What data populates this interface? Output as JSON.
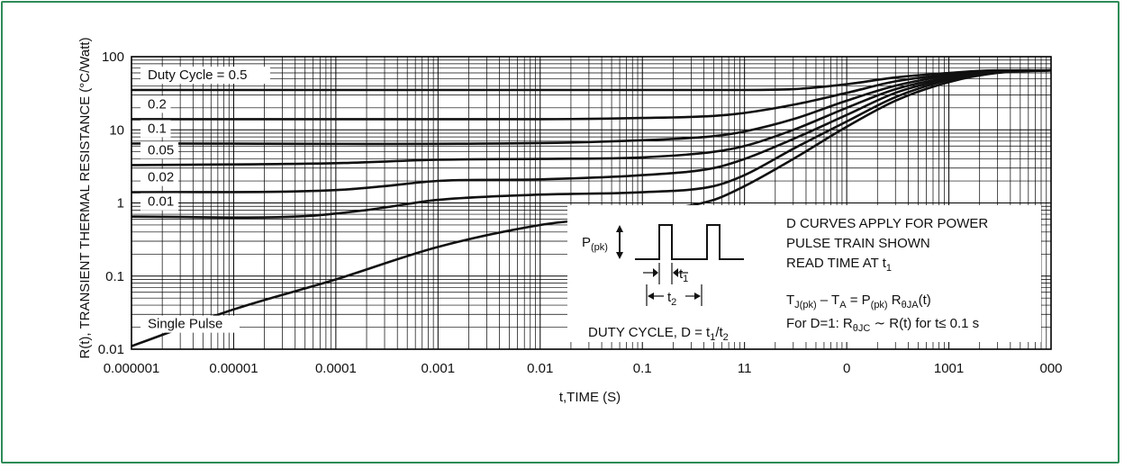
{
  "colors": {
    "frame": "#2e8b57",
    "grid": "#000000",
    "curve": "#111111"
  },
  "chart_data": {
    "type": "line",
    "scale": {
      "x": "log",
      "y": "log"
    },
    "xlabel": "t,TIME (S)",
    "ylabel": "R(t), TRANSIENT THERMAL RESISTANCE (°C/Watt)",
    "xlim": [
      1e-06,
      1000
    ],
    "ylim": [
      0.01,
      100
    ],
    "x_tick_labels": [
      "0.000001",
      "0.00001",
      "0.0001",
      "0.001",
      "0.01",
      "0.1",
      "11",
      "0",
      "1001",
      "000"
    ],
    "y_tick_labels": [
      "0.01",
      "0.1",
      "1",
      "10",
      "100"
    ],
    "grid": true,
    "series": [
      {
        "name": "Duty Cycle = 0.5",
        "points": [
          [
            1e-06,
            35
          ],
          [
            0.01,
            35
          ],
          [
            0.1,
            35
          ],
          [
            1,
            35
          ],
          [
            3,
            36
          ],
          [
            10,
            42
          ],
          [
            30,
            52
          ],
          [
            100,
            60
          ],
          [
            300,
            65
          ],
          [
            1000,
            65
          ]
        ]
      },
      {
        "name": "0.2",
        "points": [
          [
            1e-06,
            14
          ],
          [
            0.01,
            14
          ],
          [
            0.1,
            14.5
          ],
          [
            0.5,
            15.5
          ],
          [
            1,
            17
          ],
          [
            3,
            22
          ],
          [
            10,
            32
          ],
          [
            30,
            46
          ],
          [
            100,
            57
          ],
          [
            300,
            64
          ],
          [
            1000,
            65
          ]
        ]
      },
      {
        "name": "0.1",
        "points": [
          [
            1e-06,
            6.5
          ],
          [
            0.01,
            6.6
          ],
          [
            0.1,
            7.2
          ],
          [
            0.5,
            8.2
          ],
          [
            1,
            9.5
          ],
          [
            3,
            14
          ],
          [
            10,
            25
          ],
          [
            30,
            40
          ],
          [
            100,
            55
          ],
          [
            300,
            63
          ],
          [
            1000,
            65
          ]
        ]
      },
      {
        "name": "0.05",
        "points": [
          [
            1e-06,
            3.3
          ],
          [
            0.0001,
            3.5
          ],
          [
            0.001,
            3.9
          ],
          [
            0.01,
            4
          ],
          [
            0.1,
            4.2
          ],
          [
            0.5,
            5
          ],
          [
            1,
            6
          ],
          [
            3,
            10
          ],
          [
            10,
            20
          ],
          [
            30,
            36
          ],
          [
            100,
            52
          ],
          [
            300,
            62
          ],
          [
            1000,
            65
          ]
        ]
      },
      {
        "name": "0.02",
        "points": [
          [
            1e-06,
            1.4
          ],
          [
            0.0001,
            1.5
          ],
          [
            0.0003,
            1.7
          ],
          [
            0.001,
            2.0
          ],
          [
            0.01,
            2.1
          ],
          [
            0.1,
            2.4
          ],
          [
            0.5,
            3
          ],
          [
            1,
            4
          ],
          [
            3,
            7.5
          ],
          [
            10,
            16
          ],
          [
            30,
            32
          ],
          [
            100,
            50
          ],
          [
            300,
            62
          ],
          [
            1000,
            65
          ]
        ]
      },
      {
        "name": "0.01",
        "points": [
          [
            1e-06,
            0.65
          ],
          [
            5e-05,
            0.66
          ],
          [
            0.0002,
            0.8
          ],
          [
            0.001,
            1.1
          ],
          [
            0.01,
            1.3
          ],
          [
            0.1,
            1.4
          ],
          [
            0.5,
            1.7
          ],
          [
            1,
            2.4
          ],
          [
            3,
            5.5
          ],
          [
            10,
            13
          ],
          [
            30,
            28
          ],
          [
            100,
            48
          ],
          [
            300,
            61
          ],
          [
            1000,
            65
          ]
        ]
      },
      {
        "name": "Single Pulse",
        "points": [
          [
            1e-06,
            0.011
          ],
          [
            1e-05,
            0.035
          ],
          [
            0.0001,
            0.09
          ],
          [
            0.001,
            0.25
          ],
          [
            0.01,
            0.5
          ],
          [
            0.03,
            0.6
          ],
          [
            0.1,
            0.75
          ],
          [
            0.5,
            1.1
          ],
          [
            1,
            1.7
          ],
          [
            3,
            4
          ],
          [
            10,
            11
          ],
          [
            30,
            25
          ],
          [
            100,
            45
          ],
          [
            300,
            60
          ],
          [
            1000,
            65
          ]
        ]
      }
    ]
  },
  "inset": {
    "p_main": "P",
    "p_sub": "(pk)",
    "t1_main": "t",
    "t1_sub": "1",
    "t2_main": "t",
    "t2_sub": "2",
    "duty_prefix": "DUTY CYCLE, D = t",
    "duty_sub1": "1",
    "duty_mid": "/t",
    "duty_sub2": "2"
  },
  "notes": {
    "line1": "D CURVES APPLY FOR POWER",
    "line2": "PULSE TRAIN SHOWN",
    "line3_main": "READ TIME AT t",
    "line3_sub": "1",
    "eq_t": "T",
    "eq_t_sub": "J(pk)",
    "eq_mid": " – T",
    "eq_a_sub": "A",
    "eq_eq": " = P",
    "eq_p_sub": "(pk)",
    "eq_r": " R",
    "eq_r_sub": "θJA",
    "eq_end": "(t)",
    "d1_a": "For D=1: R",
    "d1_sub": "θJC",
    "d1_b": " ∼ R(t) for t≤ 0.1 s"
  }
}
